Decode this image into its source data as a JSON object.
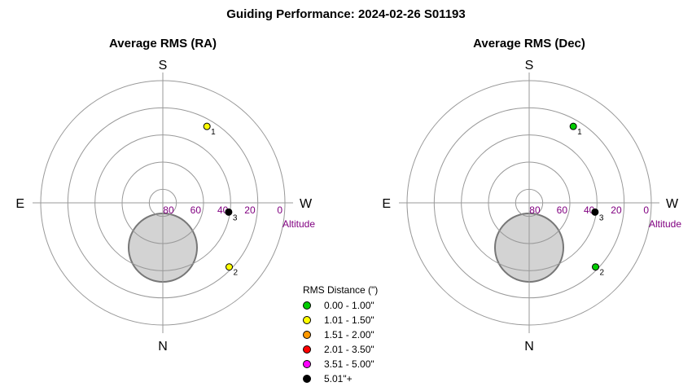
{
  "title": "Guiding Performance: 2024-02-26 S01193",
  "legend": {
    "title": "RMS Distance (\")",
    "items": [
      {
        "label": "0.00 - 1.00\"",
        "color": "#00cc00"
      },
      {
        "label": "1.01 - 1.50\"",
        "color": "#ffff00"
      },
      {
        "label": "1.51 - 2.00\"",
        "color": "#ff9900"
      },
      {
        "label": "2.01 - 3.50\"",
        "color": "#ff0000"
      },
      {
        "label": "3.51 - 5.00\"",
        "color": "#ff00ff"
      },
      {
        "label": "5.01\"+",
        "color": "#000000"
      }
    ]
  },
  "chart_data": [
    {
      "type": "scatter",
      "title": "Average RMS (RA)",
      "directions": {
        "top": "S",
        "bottom": "N",
        "left": "E",
        "right": "W"
      },
      "altitude_axis_label": "Altitude",
      "altitude_ticks": [
        "80",
        "60",
        "40",
        "20",
        "0"
      ],
      "excluded_region": {
        "label": "",
        "color": "#d3d3d3"
      },
      "points": [
        {
          "label": "1",
          "altitude": 25,
          "angle_deg": 30,
          "color": "#ffff00"
        },
        {
          "label": "2",
          "altitude": 22,
          "angle_deg": 134,
          "color": "#ffff00"
        },
        {
          "label": "3",
          "altitude": 41,
          "angle_deg": 98,
          "color": "#000000"
        }
      ]
    },
    {
      "type": "scatter",
      "title": "Average RMS (Dec)",
      "directions": {
        "top": "S",
        "bottom": "N",
        "left": "E",
        "right": "W"
      },
      "altitude_axis_label": "Altitude",
      "altitude_ticks": [
        "80",
        "60",
        "40",
        "20",
        "0"
      ],
      "excluded_region": {
        "label": "",
        "color": "#d3d3d3"
      },
      "points": [
        {
          "label": "1",
          "altitude": 25,
          "angle_deg": 30,
          "color": "#00cc00"
        },
        {
          "label": "2",
          "altitude": 22,
          "angle_deg": 134,
          "color": "#00cc00"
        },
        {
          "label": "3",
          "altitude": 41,
          "angle_deg": 98,
          "color": "#000000"
        }
      ]
    }
  ]
}
